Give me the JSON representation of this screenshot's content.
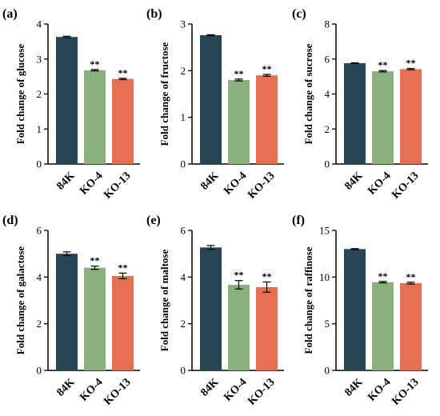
{
  "colors": {
    "84K": "#264653",
    "KO-4": "#8ab17d",
    "KO-13": "#e76f51",
    "axis": "#000000"
  },
  "significance_marker": "**",
  "chart_data": [
    {
      "panel_label": "(a)",
      "type": "bar",
      "categories": [
        "84K",
        "KO-4",
        "KO-13"
      ],
      "values": [
        3.63,
        2.68,
        2.43
      ],
      "errors": [
        0.02,
        0.02,
        0.02
      ],
      "significance": [
        "",
        "**",
        "**"
      ],
      "ylabel": "Fold change of glucose",
      "ylim": [
        0,
        4
      ],
      "yticks": [
        0,
        1,
        2,
        3,
        4
      ]
    },
    {
      "panel_label": "(b)",
      "type": "bar",
      "categories": [
        "84K",
        "KO-4",
        "KO-13"
      ],
      "values": [
        2.76,
        1.8,
        1.9
      ],
      "errors": [
        0.01,
        0.02,
        0.02
      ],
      "significance": [
        "",
        "**",
        "**"
      ],
      "ylabel": "Fold change of fructose",
      "ylim": [
        0,
        3
      ],
      "yticks": [
        0,
        1,
        2,
        3
      ]
    },
    {
      "panel_label": "(c)",
      "type": "bar",
      "categories": [
        "84K",
        "KO-4",
        "KO-13"
      ],
      "values": [
        5.76,
        5.3,
        5.42
      ],
      "errors": [
        0.02,
        0.04,
        0.04
      ],
      "significance": [
        "",
        "**",
        "**"
      ],
      "ylabel": "Fold change of sucrose",
      "ylim": [
        0,
        8
      ],
      "yticks": [
        0,
        2,
        4,
        6,
        8
      ]
    },
    {
      "panel_label": "(d)",
      "type": "bar",
      "categories": [
        "84K",
        "KO-4",
        "KO-13"
      ],
      "values": [
        5.0,
        4.4,
        4.05
      ],
      "errors": [
        0.08,
        0.07,
        0.12
      ],
      "significance": [
        "",
        "**",
        "**"
      ],
      "ylabel": "Fold change of galactose",
      "ylim": [
        0,
        6
      ],
      "yticks": [
        0,
        2,
        4,
        6
      ]
    },
    {
      "panel_label": "(e)",
      "type": "bar",
      "categories": [
        "84K",
        "KO-4",
        "KO-13"
      ],
      "values": [
        5.27,
        3.67,
        3.57
      ],
      "errors": [
        0.08,
        0.18,
        0.22
      ],
      "significance": [
        "",
        "**",
        "**"
      ],
      "ylabel": "Fold change of maltose",
      "ylim": [
        0,
        6
      ],
      "yticks": [
        0,
        2,
        4,
        6
      ]
    },
    {
      "panel_label": "(f)",
      "type": "bar",
      "categories": [
        "84K",
        "KO-4",
        "KO-13"
      ],
      "values": [
        13.0,
        9.45,
        9.35
      ],
      "errors": [
        0.05,
        0.08,
        0.1
      ],
      "significance": [
        "",
        "**",
        "**"
      ],
      "ylabel": "Fold change of raffinose",
      "ylim": [
        0,
        15
      ],
      "yticks": [
        0,
        5,
        10,
        15
      ]
    }
  ]
}
